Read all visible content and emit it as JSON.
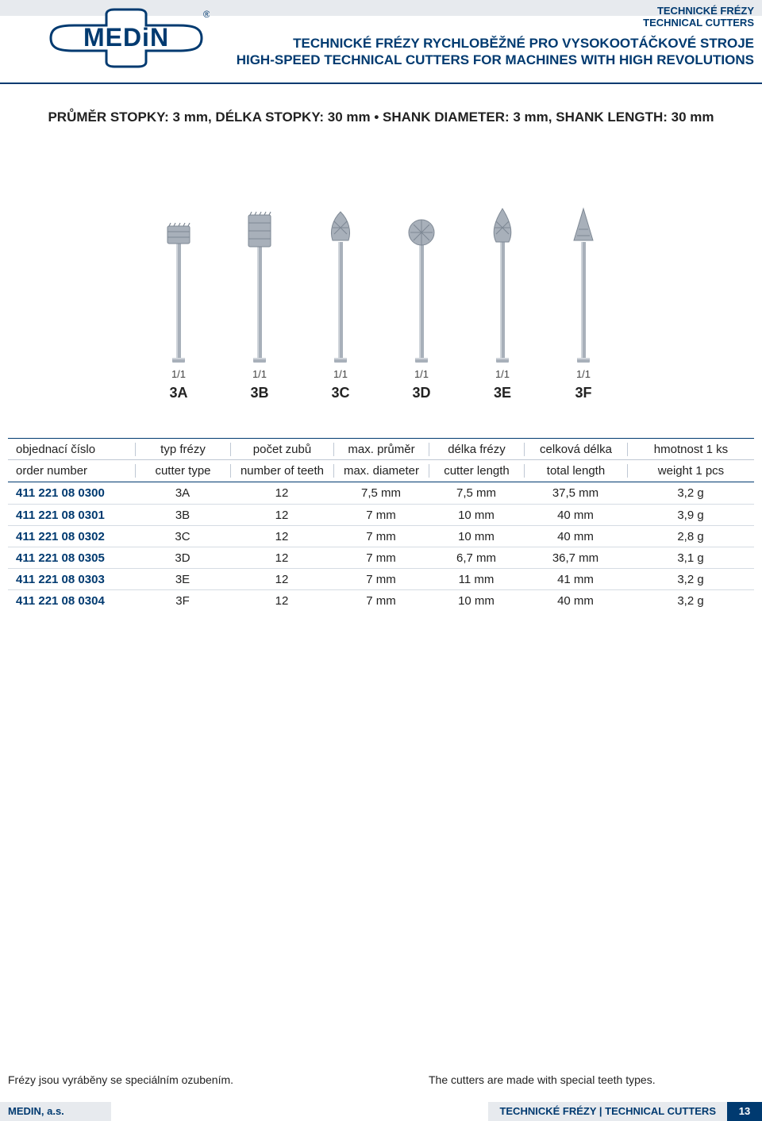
{
  "colors": {
    "brand_blue": "#003a70",
    "header_grey": "#e7eaee",
    "row_divider": "#d5dbe3",
    "hdr_divider": "#bfc8d4",
    "text": "#222222",
    "steel_light": "#cfd4da",
    "steel_mid": "#a8b0ba",
    "steel_dark": "#7e8894"
  },
  "header": {
    "category_cs": "TECHNICKÉ FRÉZY",
    "category_en": "TECHNICAL CUTTERS",
    "title_cs": "TECHNICKÉ FRÉZY RYCHLOBĚŽNÉ PRO VYSOKOOTÁČKOVÉ STROJE",
    "title_en": "HIGH-SPEED TECHNICAL CUTTERS FOR MACHINES WITH HIGH REVOLUTIONS",
    "logo_text": "MEDIN",
    "logo_registered": "®"
  },
  "spec_line": "PRŮMĚR STOPKY: 3 mm, DÉLKA STOPKY: 30 mm • SHANK DIAMETER: 3 mm, SHANK LENGTH: 30 mm",
  "figures": [
    {
      "id": "3A",
      "scale": "1/1",
      "shape": "cyl_wide"
    },
    {
      "id": "3B",
      "scale": "1/1",
      "shape": "cyl_tall"
    },
    {
      "id": "3C",
      "scale": "1/1",
      "shape": "bud"
    },
    {
      "id": "3D",
      "scale": "1/1",
      "shape": "ball"
    },
    {
      "id": "3E",
      "scale": "1/1",
      "shape": "flame"
    },
    {
      "id": "3F",
      "scale": "1/1",
      "shape": "cone"
    }
  ],
  "table": {
    "headers_cs": [
      "objednací číslo",
      "typ frézy",
      "počet zubů",
      "max. průměr",
      "délka frézy",
      "celková délka",
      "hmotnost 1 ks"
    ],
    "headers_en": [
      "order number",
      "cutter type",
      "number of teeth",
      "max. diameter",
      "cutter length",
      "total length",
      "weight 1 pcs"
    ],
    "rows": [
      [
        "411 221 08 0300",
        "3A",
        "12",
        "7,5 mm",
        "7,5 mm",
        "37,5 mm",
        "3,2 g"
      ],
      [
        "411 221 08 0301",
        "3B",
        "12",
        "7 mm",
        "10 mm",
        "40 mm",
        "3,9 g"
      ],
      [
        "411 221 08 0302",
        "3C",
        "12",
        "7 mm",
        "10 mm",
        "40 mm",
        "2,8 g"
      ],
      [
        "411 221 08 0305",
        "3D",
        "12",
        "7 mm",
        "6,7 mm",
        "36,7 mm",
        "3,1 g"
      ],
      [
        "411 221 08 0303",
        "3E",
        "12",
        "7 mm",
        "11 mm",
        "41 mm",
        "3,2 g"
      ],
      [
        "411 221 08 0304",
        "3F",
        "12",
        "7 mm",
        "10 mm",
        "40 mm",
        "3,2 g"
      ]
    ]
  },
  "footnotes": {
    "cs": "Frézy jsou vyráběny se speciálním ozubením.",
    "en": "The cutters are made with special teeth types."
  },
  "footer": {
    "company": "MEDIN, a.s.",
    "category": "TECHNICKÉ FRÉZY  |  TECHNICAL CUTTERS",
    "page": "13"
  }
}
